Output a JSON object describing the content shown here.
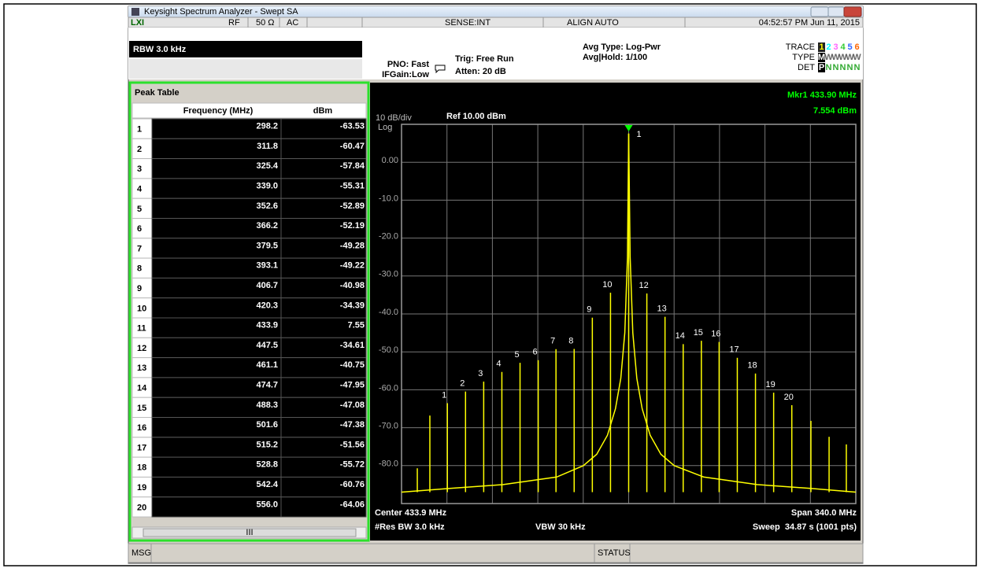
{
  "window": {
    "title": "Keysight Spectrum Analyzer - Swept SA"
  },
  "status_bar": {
    "rf": "RF",
    "impedance": "50 Ω",
    "coupling": "AC",
    "sense": "SENSE:INT",
    "align": "ALIGN AUTO",
    "datetime": "04:52:57 PM Jun 11, 2015"
  },
  "settings": {
    "rbw": "RBW 3.0 kHz",
    "pno": "PNO: Fast",
    "ifgain": "IFGain:Low",
    "trig": "Trig: Free Run",
    "atten": "Atten: 20 dB",
    "avg_type": "Avg Type: Log-Pwr",
    "avg_hold": "Avg|Hold: 1/100",
    "trace_label": "TRACE",
    "trace_numbers": [
      "1",
      "2",
      "3",
      "4",
      "5",
      "6"
    ],
    "type_label": "TYPE",
    "type_values": [
      "M",
      "W",
      "W",
      "W",
      "W",
      "W"
    ],
    "det_label": "DET",
    "det_values": [
      "P",
      "N",
      "N",
      "N",
      "N",
      "N"
    ]
  },
  "peak_table": {
    "title": "Peak Table",
    "columns": [
      "Frequency (MHz)",
      "dBm"
    ],
    "rows": [
      [
        "1",
        "298.2",
        "-63.53"
      ],
      [
        "2",
        "311.8",
        "-60.47"
      ],
      [
        "3",
        "325.4",
        "-57.84"
      ],
      [
        "4",
        "339.0",
        "-55.31"
      ],
      [
        "5",
        "352.6",
        "-52.89"
      ],
      [
        "6",
        "366.2",
        "-52.19"
      ],
      [
        "7",
        "379.5",
        "-49.28"
      ],
      [
        "8",
        "393.1",
        "-49.22"
      ],
      [
        "9",
        "406.7",
        "-40.98"
      ],
      [
        "10",
        "420.3",
        "-34.39"
      ],
      [
        "11",
        "433.9",
        "7.55"
      ],
      [
        "12",
        "447.5",
        "-34.61"
      ],
      [
        "13",
        "461.1",
        "-40.75"
      ],
      [
        "14",
        "474.7",
        "-47.95"
      ],
      [
        "15",
        "488.3",
        "-47.08"
      ],
      [
        "16",
        "501.6",
        "-47.38"
      ],
      [
        "17",
        "515.2",
        "-51.56"
      ],
      [
        "18",
        "528.8",
        "-55.72"
      ],
      [
        "19",
        "542.4",
        "-60.76"
      ],
      [
        "20",
        "556.0",
        "-64.06"
      ]
    ],
    "scroll": "III"
  },
  "display": {
    "marker_readout": "Mkr1 433.90 MHz",
    "marker_value": "7.554 dBm",
    "scale": "10 dB/div",
    "ref": "Ref 10.00 dBm",
    "scale_type": "Log",
    "marker_number": "1",
    "ylim": [
      -90,
      10
    ],
    "xlim": [
      263.9,
      603.9
    ],
    "yticks": [
      {
        "value": 0,
        "label": "0.00"
      },
      {
        "value": -10,
        "label": "-10.0"
      },
      {
        "value": -20,
        "label": "-20.0"
      },
      {
        "value": -30,
        "label": "-30.0"
      },
      {
        "value": -40,
        "label": "-40.0"
      },
      {
        "value": -50,
        "label": "-50.0"
      },
      {
        "value": -60,
        "label": "-60.0"
      },
      {
        "value": -70,
        "label": "-70.0"
      },
      {
        "value": -80,
        "label": "-80.0"
      }
    ],
    "xgrid": [
      263.9,
      297.9,
      331.9,
      365.9,
      399.9,
      433.9,
      467.9,
      501.9,
      535.9,
      569.9,
      603.9
    ],
    "other_peaks": {
      "x": [
        275.7,
        285.1,
        570.3,
        583.9,
        596.8
      ],
      "y": [
        -80.7,
        -66.8,
        -68.2,
        -72.4,
        -74.4
      ]
    },
    "trace": {
      "x": [
        263.9,
        300,
        340,
        380,
        400,
        410,
        418,
        424,
        428,
        431,
        433,
        433.9,
        435,
        437,
        440,
        444,
        450,
        458,
        468,
        490,
        530,
        570,
        603.9
      ],
      "y": [
        -87,
        -86,
        -85,
        -83,
        -80,
        -77,
        -72,
        -65,
        -57,
        -45,
        -25,
        7.55,
        -25,
        -45,
        -57,
        -65,
        -72,
        -77,
        -80,
        -83,
        -85,
        -86,
        -87
      ]
    },
    "center": "Center 433.9 MHz",
    "span": "Span 340.0 MHz",
    "res_bw": "#Res BW 3.0 kHz",
    "vbw": "VBW 30 kHz",
    "sweep": "Sweep  34.87 s (1001 pts)"
  },
  "footer": {
    "msg": "MSG",
    "status": "STATUS"
  }
}
